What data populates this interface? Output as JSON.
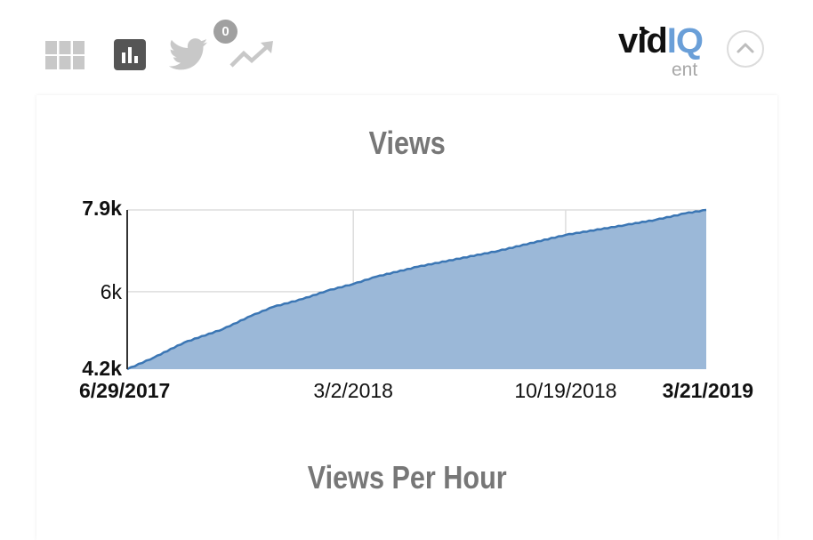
{
  "toolbar": {
    "icons": [
      {
        "name": "grid-icon",
        "active": false
      },
      {
        "name": "bar-chart-icon",
        "active": true
      },
      {
        "name": "twitter-icon",
        "active": false
      },
      {
        "name": "trending-up-icon",
        "active": false
      }
    ],
    "twitter_badge": "0",
    "icon_color_inactive": "#c8c8c8",
    "icon_color_active": "#555555"
  },
  "logo": {
    "part1": "vid",
    "part2": "IQ",
    "sub": "ent",
    "accent": "#6a9fd8"
  },
  "collapse_button": {
    "icon": "chevron-up-icon"
  },
  "sections": {
    "views_title": "Views",
    "views_per_hour_title": "Views Per Hour"
  },
  "chart_data": {
    "type": "area",
    "title": "Views",
    "xlabel": "",
    "ylabel": "",
    "ylim": [
      4200,
      7900
    ],
    "y_ticks": [
      {
        "value": 7900,
        "label": "7.9k",
        "bold": true
      },
      {
        "value": 6000,
        "label": "6k",
        "bold": false
      },
      {
        "value": 4200,
        "label": "4.2k",
        "bold": true
      }
    ],
    "x_ticks": [
      {
        "day": 0,
        "label": "6/29/2017",
        "bold": true
      },
      {
        "day": 246,
        "label": "3/2/2018",
        "bold": false,
        "gridline": true
      },
      {
        "day": 477,
        "label": "10/19/2018",
        "bold": false,
        "gridline": true
      },
      {
        "day": 630,
        "label": "3/21/2019",
        "bold": true
      }
    ],
    "grid": true,
    "legend": "none",
    "line_color": "#3b76b4",
    "fill_color": "#9bb8d8",
    "points": [
      {
        "date": "6/29/2017",
        "day": 0,
        "views": 4200
      },
      {
        "date": "7/28/2017",
        "day": 29,
        "views": 4470
      },
      {
        "date": "8/30/2017",
        "day": 62,
        "views": 4820
      },
      {
        "date": "10/11/2017",
        "day": 104,
        "views": 5130
      },
      {
        "date": "11/11/2017",
        "day": 135,
        "views": 5440
      },
      {
        "date": "12/5/2017",
        "day": 159,
        "views": 5650
      },
      {
        "date": "1/6/2018",
        "day": 191,
        "views": 5830
      },
      {
        "date": "2/1/2018",
        "day": 217,
        "views": 6020
      },
      {
        "date": "3/2/2018",
        "day": 246,
        "views": 6180
      },
      {
        "date": "3/27/2018",
        "day": 271,
        "views": 6350
      },
      {
        "date": "5/11/2018",
        "day": 316,
        "views": 6580
      },
      {
        "date": "8/7/2018",
        "day": 404,
        "views": 6950
      },
      {
        "date": "10/19/2018",
        "day": 477,
        "views": 7320
      },
      {
        "date": "12/23/2018",
        "day": 542,
        "views": 7550
      },
      {
        "date": "1/25/2019",
        "day": 575,
        "views": 7670
      },
      {
        "date": "2/26/2019",
        "day": 607,
        "views": 7820
      },
      {
        "date": "3/21/2019",
        "day": 630,
        "views": 7900
      }
    ]
  }
}
